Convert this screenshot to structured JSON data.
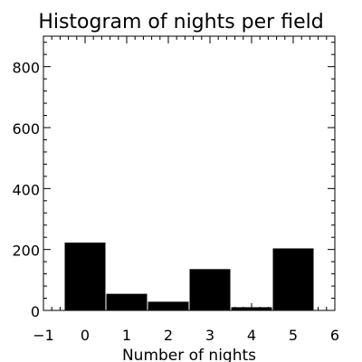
{
  "chart_data": {
    "type": "bar",
    "title": "Histogram of nights per field",
    "xlabel": "Number of nights",
    "ylabel": "",
    "categories": [
      "0",
      "1",
      "2",
      "3",
      "4",
      "5"
    ],
    "x": [
      0,
      1,
      2,
      3,
      4,
      5
    ],
    "values": [
      224,
      56,
      30,
      137,
      12,
      205
    ],
    "bar_width": 1,
    "xlim": [
      -1,
      6
    ],
    "ylim": [
      0,
      900
    ],
    "x_ticks": [
      -1,
      0,
      1,
      2,
      3,
      4,
      5,
      6
    ],
    "x_tick_labels": [
      "−1",
      "0",
      "1",
      "2",
      "3",
      "4",
      "5",
      "6"
    ],
    "y_ticks": [
      0,
      200,
      400,
      600,
      800
    ],
    "y_tick_labels": [
      "0",
      "200",
      "400",
      "600",
      "800"
    ],
    "grid": false,
    "legend": "none",
    "bar_color": "#000000",
    "background": "#ffffff"
  }
}
